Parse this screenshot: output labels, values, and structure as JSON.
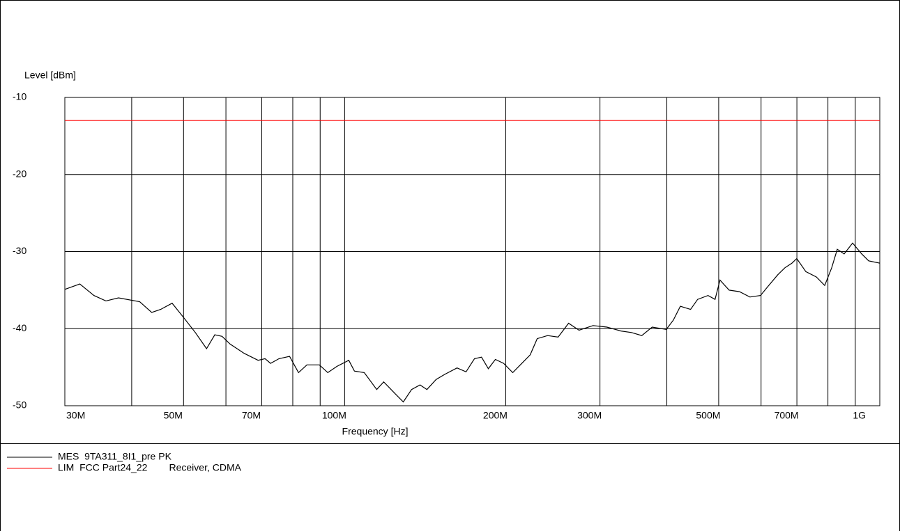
{
  "chart_data": {
    "type": "line",
    "ylabel": "Level [dBm]",
    "xlabel": "Frequency [Hz]",
    "xscale": "log",
    "xlim": [
      30000000.0,
      1000000000.0
    ],
    "xticks": [
      {
        "value": 30000000.0,
        "label": "30M"
      },
      {
        "value": 50000000.0,
        "label": "50M"
      },
      {
        "value": 70000000.0,
        "label": "70M"
      },
      {
        "value": 100000000.0,
        "label": "100M"
      },
      {
        "value": 200000000.0,
        "label": "200M"
      },
      {
        "value": 300000000.0,
        "label": "300M"
      },
      {
        "value": 500000000.0,
        "label": "500M"
      },
      {
        "value": 700000000.0,
        "label": "700M"
      },
      {
        "value": 1000000000.0,
        "label": "1G"
      }
    ],
    "xminor_ticks": [
      40000000.0,
      60000000.0,
      80000000.0,
      90000000.0,
      400000000.0,
      600000000.0,
      800000000.0,
      900000000.0
    ],
    "ylim": [
      -50,
      -10
    ],
    "yticks": [
      -10,
      -20,
      -30,
      -40,
      -50
    ],
    "grid": true,
    "series": [
      {
        "name": "MES  9TA311_8I1_pre PK",
        "color": "#000000",
        "x": [
          30000000.0,
          32000000.0,
          34000000.0,
          35800000.0,
          37800000.0,
          41400000.0,
          43600000.0,
          45300000.0,
          47600000.0,
          49800000.0,
          52600000.0,
          55200000.0,
          57200000.0,
          59000000.0,
          61100000.0,
          64900000.0,
          68900000.0,
          71000000.0,
          72700000.0,
          75400000.0,
          78900000.0,
          82000000.0,
          85000000.0,
          89700000.0,
          93000000.0,
          96700000.0,
          101800000.0,
          104300000.0,
          108800000.0,
          114800000.0,
          118300000.0,
          124100000.0,
          128700000.0,
          133400000.0,
          138300000.0,
          142500000.0,
          148200000.0,
          154100000.0,
          162200000.0,
          168600000.0,
          174800000.0,
          180200000.0,
          185600000.0,
          191300000.0,
          198200000.0,
          206100000.0,
          214400000.0,
          222200000.0,
          229000000.0,
          239500000.0,
          250600000.0,
          262100000.0,
          274200000.0,
          291200000.0,
          309000000.0,
          328200000.0,
          343500000.0,
          359100000.0,
          375600000.0,
          399000000.0,
          411300000.0,
          423900000.0,
          443100000.0,
          456600000.0,
          477600000.0,
          492300000.0,
          502800000.0,
          522900000.0,
          546900000.0,
          571800000.0,
          598500000.0,
          616800000.0,
          645000000.0,
          664800000.0,
          685200000.0,
          699600000.0,
          727500000.0,
          761100000.0,
          789000000.0,
          813000000.0,
          832800000.0,
          858000000.0,
          889500000.0,
          924900000.0,
          953100000.0,
          1000000000.0
        ],
        "values": [
          -34.9,
          -34.2,
          -35.7,
          -36.4,
          -36.0,
          -36.5,
          -37.9,
          -37.5,
          -36.7,
          -38.4,
          -40.5,
          -42.6,
          -40.8,
          -41.0,
          -42.0,
          -43.2,
          -44.1,
          -43.9,
          -44.5,
          -43.9,
          -43.6,
          -45.7,
          -44.7,
          -44.7,
          -45.7,
          -44.9,
          -44.1,
          -45.5,
          -45.7,
          -47.9,
          -46.9,
          -48.4,
          -49.5,
          -47.9,
          -47.3,
          -47.9,
          -46.6,
          -45.9,
          -45.1,
          -45.6,
          -43.9,
          -43.7,
          -45.2,
          -44.0,
          -44.5,
          -45.7,
          -44.5,
          -43.4,
          -41.3,
          -40.9,
          -41.1,
          -39.3,
          -40.2,
          -39.6,
          -39.8,
          -40.3,
          -40.5,
          -40.9,
          -39.8,
          -40.1,
          -38.9,
          -37.1,
          -37.5,
          -36.2,
          -35.7,
          -36.2,
          -33.7,
          -35.0,
          -35.2,
          -35.9,
          -35.7,
          -34.6,
          -33.0,
          -32.1,
          -31.5,
          -30.9,
          -32.6,
          -33.3,
          -34.4,
          -32.1,
          -29.7,
          -30.3,
          -28.9,
          -30.3,
          -31.2,
          -31.5
        ]
      },
      {
        "name": "LIM  FCC Part24_22        Receiver, CDMA",
        "color": "#ff0000",
        "x": [
          30000000.0,
          1000000000.0
        ],
        "values": [
          -13,
          -13
        ]
      }
    ]
  }
}
